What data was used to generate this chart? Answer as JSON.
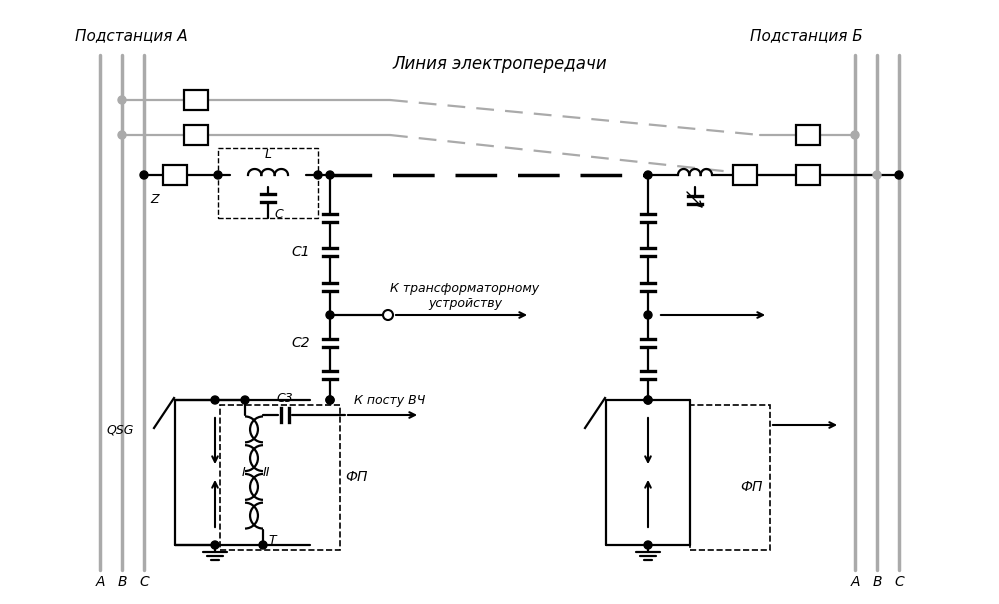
{
  "bg": "#ffffff",
  "lc": "#000000",
  "gc": "#aaaaaa",
  "sub_a": "Подстанция А",
  "sub_b": "Подстанция Б",
  "line_label": "Линия электропередачи",
  "C1": "C1",
  "C2": "C2",
  "C3": "C3",
  "Z": "Z",
  "C_cap": "C",
  "L_ind": "L",
  "T_label": "T",
  "FP": "ФП",
  "QSG": "QSG",
  "I_label": "I",
  "II_label": "II",
  "A": "A",
  "B": "B",
  "Cv": "C",
  "trans_label": "К трансформаторному\nустройству",
  "post_label": "К посту ВЧ"
}
